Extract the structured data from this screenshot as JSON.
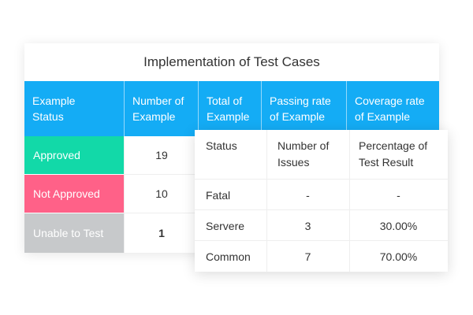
{
  "main_table": {
    "title": "Implementation of Test Cases",
    "headers": [
      "Example\nStatus",
      "Number of\nExample",
      "Total of\nExample",
      "Passing rate\nof Example",
      "Coverage rate\nof Example"
    ],
    "rows": [
      {
        "status": "Approved",
        "number": "19",
        "color": "#12d9a8"
      },
      {
        "status": "Not Approved",
        "number": "10",
        "color": "#ff6188"
      },
      {
        "status": "Unable to Test",
        "number": "1",
        "color": "#c7c9cb"
      }
    ],
    "header_color": "#14acf5"
  },
  "issues_table": {
    "headers": [
      "Status",
      "Number of\nIssues",
      "Percentage of\nTest Result"
    ],
    "rows": [
      {
        "status": "Fatal",
        "issues": "-",
        "percentage": "-"
      },
      {
        "status": "Servere",
        "issues": "3",
        "percentage": "30.00%"
      },
      {
        "status": "Common",
        "issues": "7",
        "percentage": "70.00%"
      }
    ]
  }
}
